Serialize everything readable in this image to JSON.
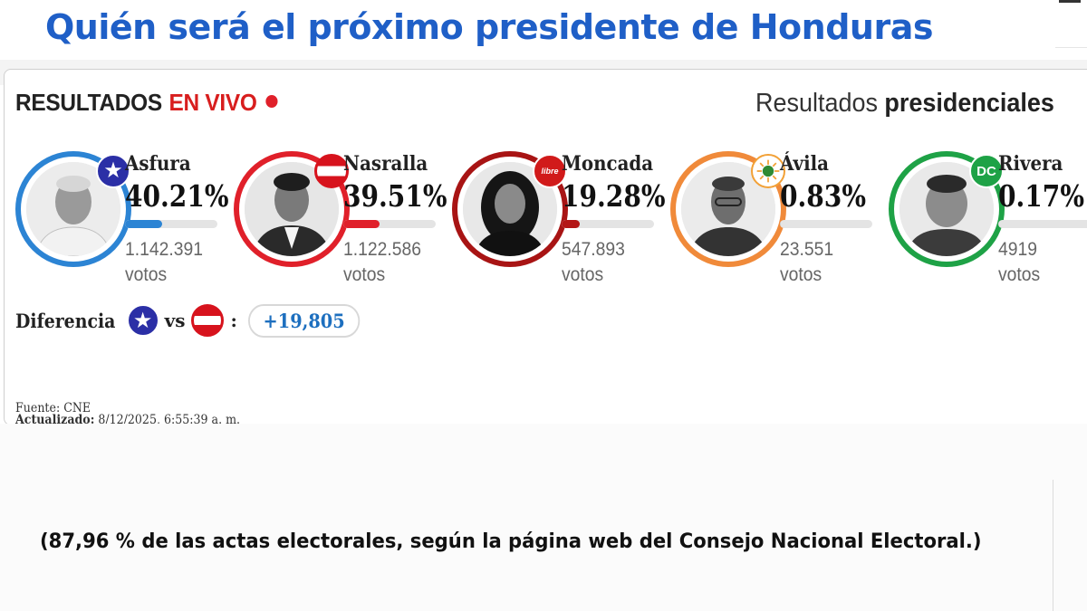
{
  "headline": "Quién será el próximo presidente de Honduras",
  "header": {
    "live_prefix": "RESULTADOS",
    "live_label": "EN VIVO",
    "results_prefix": "Resultados",
    "results_bold": "presidenciales"
  },
  "colors": {
    "headline_blue": "#1f5fc7",
    "live_red": "#d81e1e",
    "asfura_blue": "#2c84d4",
    "nasralla_red": "#e0202a",
    "moncada_darkred": "#a81414",
    "avila_orange": "#f08a3a",
    "rivera_green": "#1ea246"
  },
  "candidates": [
    {
      "name": "Asfura",
      "percent": "40.21%",
      "share": 40.21,
      "votes": "1.142.391",
      "votes_label": "votos",
      "party_icon": "star-icon",
      "color": "#2c84d4",
      "bar_color": "#2c84d4"
    },
    {
      "name": "Nasralla",
      "percent": "39.51%",
      "share": 39.51,
      "votes": "1.122.586",
      "votes_label": "votos",
      "party_icon": "liberal-flag-icon",
      "color": "#e0202a",
      "bar_color": "#e0202a"
    },
    {
      "name": "Moncada",
      "percent": "19.28%",
      "share": 19.28,
      "votes": "547.893",
      "votes_label": "votos",
      "party_icon": "libre-logo-icon",
      "badge_text": "libre",
      "color": "#a81414",
      "bar_color": "#b31616"
    },
    {
      "name": "Ávila",
      "percent": "0.83%",
      "share": 0.83,
      "votes": "23.551",
      "votes_label": "votos",
      "party_icon": "sun-icon",
      "color": "#f08a3a",
      "bar_color": "#e4e4e4"
    },
    {
      "name": "Rivera",
      "percent": "0.17%",
      "share": 0.17,
      "votes": "4919",
      "votes_label": "votos",
      "party_icon": "dc-logo-icon",
      "badge_text": "DC",
      "color": "#1ea246",
      "bar_color": "#e4e4e4"
    }
  ],
  "difference": {
    "label": "Diferencia",
    "vs": "vs",
    "colon": ":",
    "value": "+19,805"
  },
  "source": {
    "source_label": "Fuente:",
    "source_value": "CNE",
    "updated_label": "Actualizado:",
    "updated_value": "8/12/2025, 6:55:39 a. m."
  },
  "note": "(87,96 % de las actas electorales, según la página web del Consejo Nacional Electoral.)"
}
